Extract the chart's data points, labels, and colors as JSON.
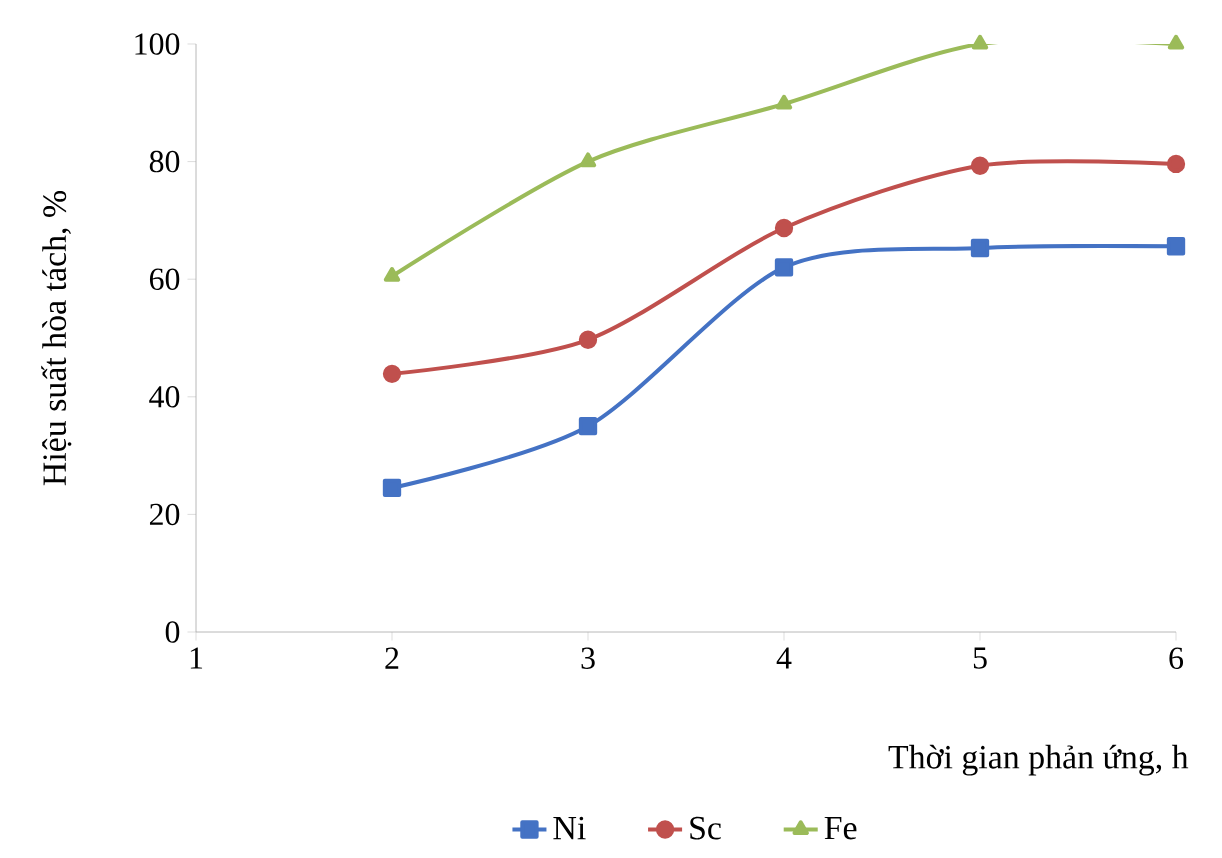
{
  "chart_data": {
    "type": "line",
    "xlabel": "Thời gian phản ứng, h",
    "ylabel": "Hiệu suất hòa tách, %",
    "x": [
      2,
      3,
      4,
      5,
      6
    ],
    "series": [
      {
        "name": "Ni",
        "color": "#4472c4",
        "marker": "square",
        "values": [
          24.5,
          35,
          62,
          65.3,
          65.6
        ]
      },
      {
        "name": "Sc",
        "color": "#c0504d",
        "marker": "circle",
        "values": [
          43.9,
          49.7,
          68.7,
          79.3,
          79.6
        ]
      },
      {
        "name": "Fe",
        "color": "#9bbb59",
        "marker": "triangle",
        "values": [
          60.5,
          80,
          89.8,
          100,
          100
        ]
      }
    ],
    "xlim": [
      1,
      6
    ],
    "xticks": [
      1,
      2,
      3,
      4,
      5,
      6
    ],
    "ylim": [
      0,
      100
    ],
    "yticks": [
      0,
      20,
      40,
      60,
      80,
      100
    ],
    "grid": false,
    "legend": "bottom"
  }
}
